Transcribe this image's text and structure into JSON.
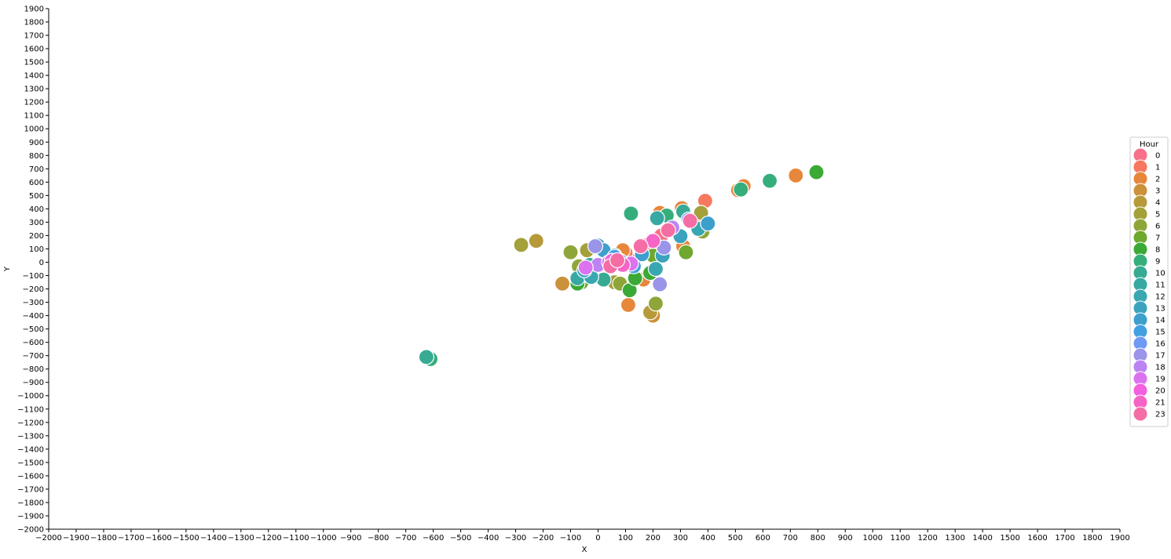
{
  "chart_data": {
    "type": "scatter",
    "xlabel": "X",
    "ylabel": "Y",
    "xlim": [
      -2000,
      1900
    ],
    "ylim": [
      -2000,
      1900
    ],
    "x_ticks": [
      -2000,
      -1900,
      -1800,
      -1700,
      -1600,
      -1500,
      -1400,
      -1300,
      -1200,
      -1100,
      -1000,
      -900,
      -800,
      -700,
      -600,
      -500,
      -400,
      -300,
      -200,
      -100,
      0,
      100,
      200,
      300,
      400,
      500,
      600,
      700,
      800,
      900,
      1000,
      1100,
      1200,
      1300,
      1400,
      1500,
      1600,
      1700,
      1800,
      1900
    ],
    "y_ticks": [
      -2000,
      -1900,
      -1800,
      -1700,
      -1600,
      -1500,
      -1400,
      -1300,
      -1200,
      -1100,
      -1000,
      -900,
      -800,
      -700,
      -600,
      -500,
      -400,
      -300,
      -200,
      -100,
      0,
      100,
      200,
      300,
      400,
      500,
      600,
      700,
      800,
      900,
      1000,
      1100,
      1200,
      1300,
      1400,
      1500,
      1600,
      1700,
      1800,
      1900
    ],
    "grid": false,
    "legend": {
      "title": "Hour",
      "placement": "right",
      "entries": [
        {
          "label": "0",
          "color": "#f77189"
        },
        {
          "label": "1",
          "color": "#f6785e"
        },
        {
          "label": "2",
          "color": "#e7873b"
        },
        {
          "label": "3",
          "color": "#cc913b"
        },
        {
          "label": "4",
          "color": "#b69a3a"
        },
        {
          "label": "5",
          "color": "#a4a03a"
        },
        {
          "label": "6",
          "color": "#8ea639"
        },
        {
          "label": "7",
          "color": "#6ea82f"
        },
        {
          "label": "8",
          "color": "#3ba935"
        },
        {
          "label": "9",
          "color": "#36ae7c"
        },
        {
          "label": "10",
          "color": "#37aa94"
        },
        {
          "label": "11",
          "color": "#38a8a3"
        },
        {
          "label": "12",
          "color": "#39a7b1"
        },
        {
          "label": "13",
          "color": "#3ba3be"
        },
        {
          "label": "14",
          "color": "#3d9fcc"
        },
        {
          "label": "15",
          "color": "#42a0e1"
        },
        {
          "label": "16",
          "color": "#6e9af3"
        },
        {
          "label": "17",
          "color": "#9a95e9"
        },
        {
          "label": "18",
          "color": "#bb83f4"
        },
        {
          "label": "19",
          "color": "#dc72f0"
        },
        {
          "label": "20",
          "color": "#f360e0"
        },
        {
          "label": "21",
          "color": "#f565c5"
        },
        {
          "label": "23",
          "color": "#f56da5"
        }
      ]
    },
    "points": [
      {
        "hour": "0",
        "x": 180,
        "y": 130
      },
      {
        "hour": "0",
        "x": 230,
        "y": 200
      },
      {
        "hour": "0",
        "x": 110,
        "y": 30
      },
      {
        "hour": "0",
        "x": 20,
        "y": -10
      },
      {
        "hour": "1",
        "x": 390,
        "y": 460
      },
      {
        "hour": "1",
        "x": 100,
        "y": 70
      },
      {
        "hour": "1",
        "x": 350,
        "y": 300
      },
      {
        "hour": "2",
        "x": 720,
        "y": 650
      },
      {
        "hour": "2",
        "x": 530,
        "y": 570
      },
      {
        "hour": "2",
        "x": 510,
        "y": 540
      },
      {
        "hour": "2",
        "x": 110,
        "y": -320
      },
      {
        "hour": "2",
        "x": 305,
        "y": 405
      },
      {
        "hour": "2",
        "x": 225,
        "y": 370
      },
      {
        "hour": "2",
        "x": 165,
        "y": -130
      },
      {
        "hour": "2",
        "x": 90,
        "y": 90
      },
      {
        "hour": "2",
        "x": 310,
        "y": 120
      },
      {
        "hour": "3",
        "x": -130,
        "y": -160
      },
      {
        "hour": "3",
        "x": 200,
        "y": -400
      },
      {
        "hour": "4",
        "x": -225,
        "y": 160
      },
      {
        "hour": "4",
        "x": 190,
        "y": -375
      },
      {
        "hour": "5",
        "x": -280,
        "y": 130
      },
      {
        "hour": "5",
        "x": 375,
        "y": 370
      },
      {
        "hour": "5",
        "x": -40,
        "y": 90
      },
      {
        "hour": "5",
        "x": 60,
        "y": -150
      },
      {
        "hour": "6",
        "x": -100,
        "y": 75
      },
      {
        "hour": "6",
        "x": 210,
        "y": -310
      },
      {
        "hour": "6",
        "x": 380,
        "y": 230
      },
      {
        "hour": "6",
        "x": -70,
        "y": -30
      },
      {
        "hour": "6",
        "x": 80,
        "y": -160
      },
      {
        "hour": "7",
        "x": 320,
        "y": 75
      },
      {
        "hour": "7",
        "x": -60,
        "y": -150
      },
      {
        "hour": "7",
        "x": 200,
        "y": 50
      },
      {
        "hour": "8",
        "x": 795,
        "y": 675
      },
      {
        "hour": "8",
        "x": 115,
        "y": -210
      },
      {
        "hour": "8",
        "x": 135,
        "y": -120
      },
      {
        "hour": "8",
        "x": -75,
        "y": -160
      },
      {
        "hour": "8",
        "x": 190,
        "y": -80
      },
      {
        "hour": "9",
        "x": 625,
        "y": 610
      },
      {
        "hour": "9",
        "x": 520,
        "y": 545
      },
      {
        "hour": "9",
        "x": -610,
        "y": -725
      },
      {
        "hour": "9",
        "x": 120,
        "y": 365
      },
      {
        "hour": "9",
        "x": 250,
        "y": 350
      },
      {
        "hour": "10",
        "x": -625,
        "y": -710
      },
      {
        "hour": "10",
        "x": 310,
        "y": 380
      },
      {
        "hour": "10",
        "x": -30,
        "y": -20
      },
      {
        "hour": "10",
        "x": 20,
        "y": -130
      },
      {
        "hour": "11",
        "x": 215,
        "y": 330
      },
      {
        "hour": "11",
        "x": -75,
        "y": -120
      },
      {
        "hour": "11",
        "x": 60,
        "y": 50
      },
      {
        "hour": "12",
        "x": 365,
        "y": 250
      },
      {
        "hour": "12",
        "x": 210,
        "y": -50
      },
      {
        "hour": "12",
        "x": -25,
        "y": -110
      },
      {
        "hour": "12",
        "x": 100,
        "y": -20
      },
      {
        "hour": "13",
        "x": 300,
        "y": 195
      },
      {
        "hour": "13",
        "x": 235,
        "y": 50
      },
      {
        "hour": "13",
        "x": 0,
        "y": 125
      },
      {
        "hour": "13",
        "x": -50,
        "y": -60
      },
      {
        "hour": "14",
        "x": 400,
        "y": 290
      },
      {
        "hour": "14",
        "x": 160,
        "y": 60
      },
      {
        "hour": "14",
        "x": 20,
        "y": 90
      },
      {
        "hour": "15",
        "x": 60,
        "y": 40
      },
      {
        "hour": "15",
        "x": 130,
        "y": -30
      },
      {
        "hour": "16",
        "x": 330,
        "y": 320
      },
      {
        "hour": "16",
        "x": 80,
        "y": 10
      },
      {
        "hour": "17",
        "x": 225,
        "y": -165
      },
      {
        "hour": "17",
        "x": -10,
        "y": 120
      },
      {
        "hour": "17",
        "x": 240,
        "y": 110
      },
      {
        "hour": "18",
        "x": 270,
        "y": 260
      },
      {
        "hour": "18",
        "x": 0,
        "y": -20
      },
      {
        "hour": "19",
        "x": -45,
        "y": -40
      },
      {
        "hour": "19",
        "x": 40,
        "y": 0
      },
      {
        "hour": "19",
        "x": 120,
        "y": -10
      },
      {
        "hour": "20",
        "x": 50,
        "y": 10
      },
      {
        "hour": "21",
        "x": 90,
        "y": -20
      },
      {
        "hour": "21",
        "x": 200,
        "y": 160
      },
      {
        "hour": "23",
        "x": 335,
        "y": 310
      },
      {
        "hour": "23",
        "x": 255,
        "y": 240
      },
      {
        "hour": "23",
        "x": 155,
        "y": 120
      },
      {
        "hour": "23",
        "x": 45,
        "y": -30
      },
      {
        "hour": "23",
        "x": 70,
        "y": 15
      }
    ]
  }
}
